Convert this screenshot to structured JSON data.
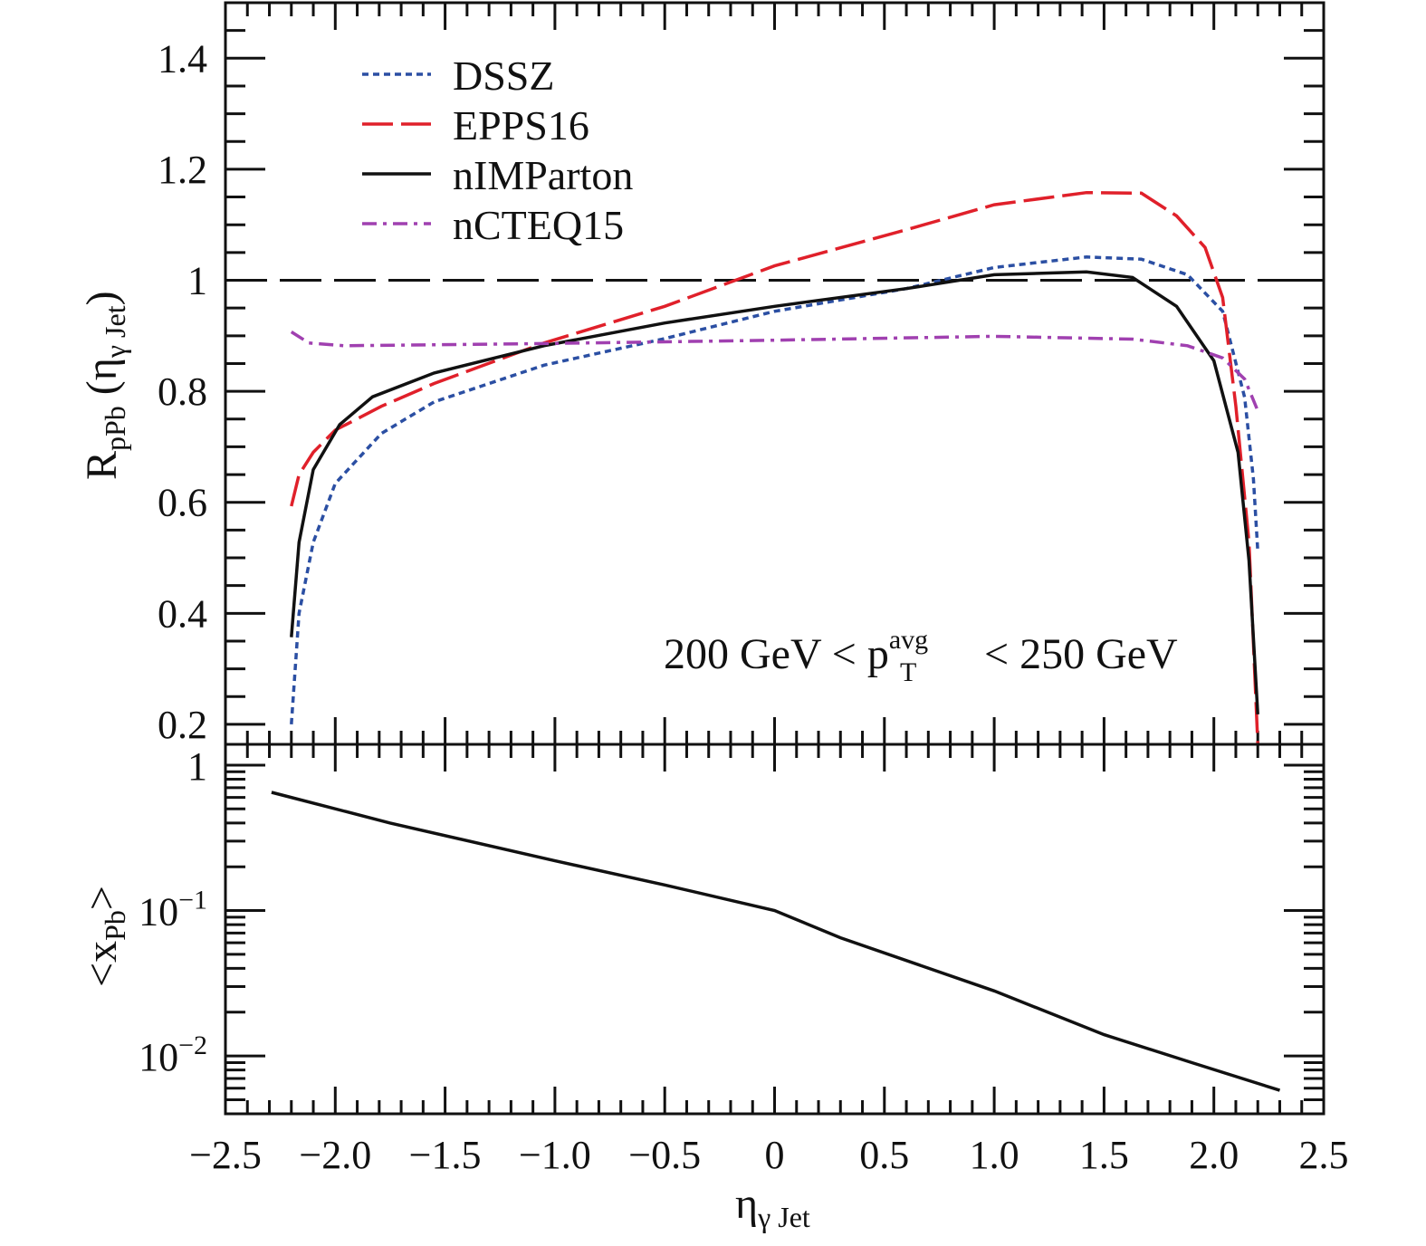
{
  "chart_data": [
    {
      "type": "line",
      "panel": "top",
      "ylabel": {
        "main": "R",
        "sub": "pPb",
        "paren_open": " (η",
        "paren_sub": "γ Jet",
        "paren_close": ")"
      },
      "xlim": [
        -2.5,
        2.5
      ],
      "ylim": [
        0.164,
        1.5
      ],
      "yticks": [
        0.2,
        0.4,
        0.6,
        0.8,
        1,
        1.2,
        1.4
      ],
      "ytick_labels": [
        "0.2",
        "0.4",
        "0.6",
        "0.8",
        "1",
        "1.2",
        "1.4"
      ],
      "reference_line": 1,
      "annotation": {
        "pre": "200 GeV < p",
        "sub": "T",
        "sup": "avg",
        "post": " < 250 GeV"
      },
      "legend_placement": "top-left",
      "series": [
        {
          "name": "DSSZ",
          "color": "#2b4fa3",
          "style": "dotted",
          "x": [
            -2.2,
            -2.165,
            -2.1,
            -2.0,
            -1.79,
            -1.55,
            -1.05,
            -0.5,
            0,
            0.6,
            1.0,
            1.42,
            1.67,
            1.88,
            2.04,
            2.14,
            2.18,
            2.2
          ],
          "y": [
            0.2,
            0.4,
            0.528,
            0.634,
            0.724,
            0.781,
            0.847,
            0.895,
            0.944,
            0.985,
            1.023,
            1.042,
            1.038,
            1.01,
            0.944,
            0.789,
            0.642,
            0.512
          ]
        },
        {
          "name": "EPPS16",
          "color": "#e0202a",
          "style": "long-dash",
          "x": [
            -2.2,
            -2.165,
            -2.1,
            -2.0,
            -1.79,
            -1.55,
            -1.05,
            -0.5,
            0,
            0.6,
            1.0,
            1.42,
            1.67,
            1.83,
            1.96,
            2.04,
            2.1,
            2.16,
            2.2
          ],
          "y": [
            0.593,
            0.65,
            0.69,
            0.73,
            0.773,
            0.814,
            0.887,
            0.953,
            1.026,
            1.091,
            1.136,
            1.158,
            1.157,
            1.116,
            1.059,
            0.969,
            0.773,
            0.528,
            0.166
          ]
        },
        {
          "name": "nIMParton",
          "color": "#111111",
          "style": "solid",
          "x": [
            -2.2,
            -2.165,
            -2.1,
            -1.98,
            -1.83,
            -1.55,
            -1.05,
            -0.5,
            0,
            0.6,
            1.0,
            1.42,
            1.63,
            1.83,
            2.0,
            2.11,
            2.16,
            2.2
          ],
          "y": [
            0.357,
            0.528,
            0.659,
            0.74,
            0.79,
            0.833,
            0.882,
            0.923,
            0.953,
            0.985,
            1.01,
            1.015,
            1.005,
            0.953,
            0.855,
            0.69,
            0.495,
            0.218
          ]
        },
        {
          "name": "nCTEQ15",
          "color": "#a040b0",
          "style": "dash-dot",
          "x": [
            -2.2,
            -2.12,
            -1.96,
            -1.05,
            0,
            1.0,
            1.63,
            1.88,
            2.04,
            2.14,
            2.2
          ],
          "y": [
            0.907,
            0.887,
            0.882,
            0.886,
            0.892,
            0.899,
            0.894,
            0.882,
            0.86,
            0.822,
            0.765
          ]
        }
      ]
    },
    {
      "type": "line",
      "panel": "bottom",
      "yscale": "log",
      "ylabel": {
        "open": "<x",
        "sub": "Pb",
        "close": ">"
      },
      "xlabel": {
        "main": "η",
        "sub": "γ Jet"
      },
      "xlim": [
        -2.5,
        2.5
      ],
      "ylim": [
        0.004,
        1.39
      ],
      "xticks": [
        -2.5,
        -2.0,
        -1.5,
        -1.0,
        -0.5,
        0,
        0.5,
        1.0,
        1.5,
        2.0,
        2.5
      ],
      "xtick_labels": [
        "−2.5",
        "−2.0",
        "−1.5",
        "−1.0",
        "−0.5",
        "0",
        "0.5",
        "1.0",
        "1.5",
        "2.0",
        "2.5"
      ],
      "yticks": [
        1,
        0.1,
        0.01
      ],
      "ytick_labels": [
        {
          "base": "1",
          "exp": ""
        },
        {
          "base": "10",
          "exp": "−1"
        },
        {
          "base": "10",
          "exp": "−2"
        }
      ],
      "series": [
        {
          "name": "<x_Pb>",
          "color": "#111111",
          "style": "solid",
          "x": [
            -2.29,
            -1.75,
            -1.0,
            -0.5,
            0,
            0.3,
            1.0,
            1.5,
            1.9,
            2.3
          ],
          "y": [
            0.65,
            0.4,
            0.22,
            0.15,
            0.1,
            0.065,
            0.028,
            0.014,
            0.009,
            0.0058
          ]
        }
      ]
    }
  ]
}
